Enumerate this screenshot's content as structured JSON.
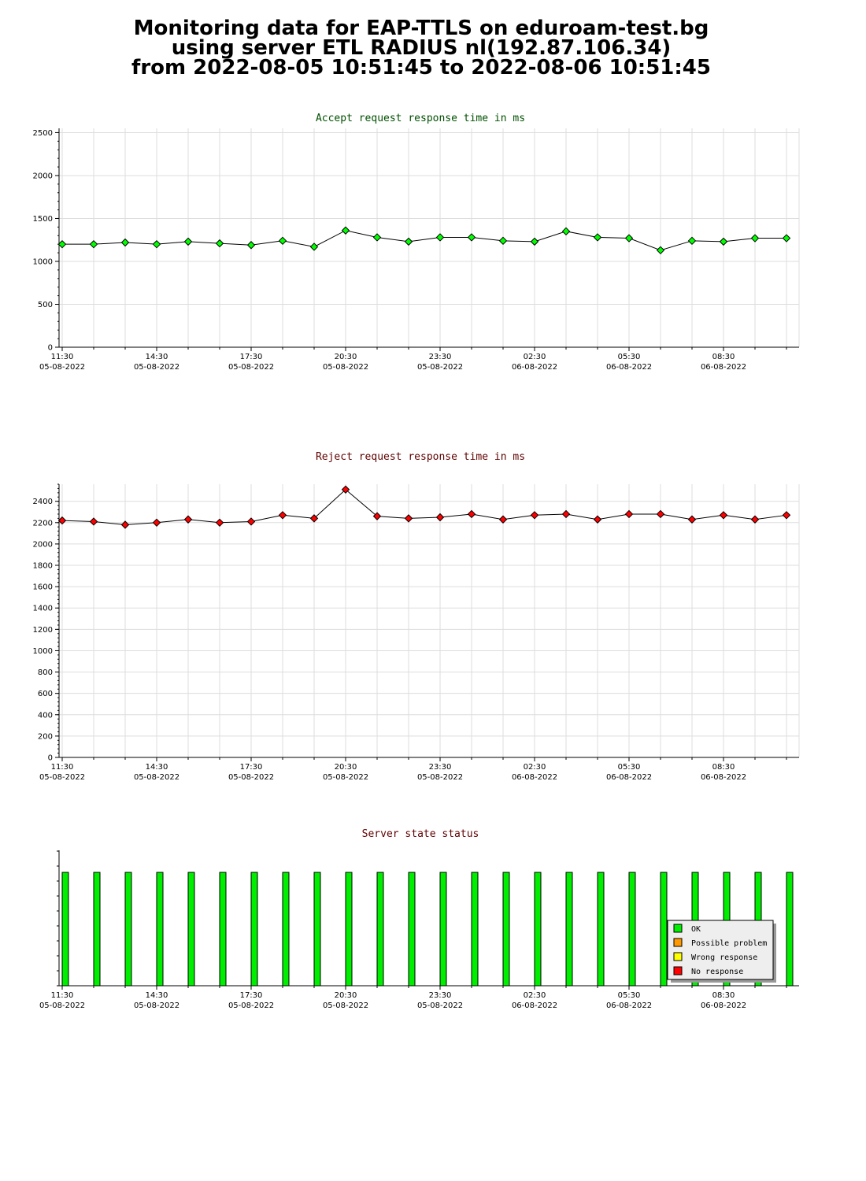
{
  "header": {
    "line1": "Monitoring data for EAP-TTLS on eduroam-test.bg",
    "line2": "using server ETL RADIUS nl(192.87.106.34)",
    "line3": "from 2022-08-05 10:51:45 to 2022-08-06 10:51:45"
  },
  "colors": {
    "accept_title": "#005000",
    "reject_title": "#600000",
    "status_title": "#600000",
    "accept_marker": "#00ff00",
    "reject_marker": "#ff0000",
    "ok_bar": "#00ee00",
    "possible_problem": "#ff9900",
    "wrong_response": "#ffff00",
    "no_response": "#ff0000",
    "grid": "#dddddd"
  },
  "x_tick_labels": [
    {
      "time": "11:30",
      "date": "05-08-2022"
    },
    {
      "time": "14:30",
      "date": "05-08-2022"
    },
    {
      "time": "17:30",
      "date": "05-08-2022"
    },
    {
      "time": "20:30",
      "date": "05-08-2022"
    },
    {
      "time": "23:30",
      "date": "05-08-2022"
    },
    {
      "time": "02:30",
      "date": "06-08-2022"
    },
    {
      "time": "05:30",
      "date": "06-08-2022"
    },
    {
      "time": "08:30",
      "date": "06-08-2022"
    }
  ],
  "chart_data": [
    {
      "type": "line",
      "title": "Accept request response time in ms",
      "xlabel": "",
      "ylabel": "",
      "x": [
        "2022-08-05 11:30",
        "2022-08-05 12:30",
        "2022-08-05 13:30",
        "2022-08-05 14:30",
        "2022-08-05 15:30",
        "2022-08-05 16:30",
        "2022-08-05 17:30",
        "2022-08-05 18:30",
        "2022-08-05 19:30",
        "2022-08-05 20:30",
        "2022-08-05 21:30",
        "2022-08-05 22:30",
        "2022-08-05 23:30",
        "2022-08-06 00:30",
        "2022-08-06 01:30",
        "2022-08-06 02:30",
        "2022-08-06 03:30",
        "2022-08-06 04:30",
        "2022-08-06 05:30",
        "2022-08-06 06:30",
        "2022-08-06 07:30",
        "2022-08-06 08:30",
        "2022-08-06 09:30",
        "2022-08-06 10:30"
      ],
      "values": [
        1200,
        1200,
        1220,
        1200,
        1230,
        1210,
        1190,
        1240,
        1170,
        1360,
        1280,
        1230,
        1280,
        1280,
        1240,
        1230,
        1350,
        1280,
        1270,
        1130,
        1240,
        1230,
        1270,
        1270
      ],
      "y_ticks": [
        "0",
        "500",
        "1000",
        "1500",
        "2000",
        "2500"
      ],
      "ylim": [
        0,
        2550
      ],
      "grid": true
    },
    {
      "type": "line",
      "title": "Reject request response time in ms",
      "xlabel": "",
      "ylabel": "",
      "x": [
        "2022-08-05 11:30",
        "2022-08-05 12:30",
        "2022-08-05 13:30",
        "2022-08-05 14:30",
        "2022-08-05 15:30",
        "2022-08-05 16:30",
        "2022-08-05 17:30",
        "2022-08-05 18:30",
        "2022-08-05 19:30",
        "2022-08-05 20:30",
        "2022-08-05 21:30",
        "2022-08-05 22:30",
        "2022-08-05 23:30",
        "2022-08-06 00:30",
        "2022-08-06 01:30",
        "2022-08-06 02:30",
        "2022-08-06 03:30",
        "2022-08-06 04:30",
        "2022-08-06 05:30",
        "2022-08-06 06:30",
        "2022-08-06 07:30",
        "2022-08-06 08:30",
        "2022-08-06 09:30",
        "2022-08-06 10:30"
      ],
      "values": [
        2220,
        2210,
        2180,
        2200,
        2230,
        2200,
        2210,
        2270,
        2240,
        2510,
        2260,
        2240,
        2250,
        2280,
        2230,
        2270,
        2280,
        2230,
        2280,
        2280,
        2230,
        2270,
        2230,
        2270
      ],
      "y_ticks": [
        "0",
        "200",
        "400",
        "600",
        "800",
        "1000",
        "1200",
        "1400",
        "1600",
        "1800",
        "2000",
        "2200",
        "2400"
      ],
      "ylim": [
        0,
        2560
      ],
      "grid": true
    },
    {
      "type": "bar",
      "title": "Server state status",
      "xlabel": "",
      "ylabel": "",
      "x": [
        "2022-08-05 11:30",
        "2022-08-05 12:30",
        "2022-08-05 13:30",
        "2022-08-05 14:30",
        "2022-08-05 15:30",
        "2022-08-05 16:30",
        "2022-08-05 17:30",
        "2022-08-05 18:30",
        "2022-08-05 19:30",
        "2022-08-05 20:30",
        "2022-08-05 21:30",
        "2022-08-05 22:30",
        "2022-08-05 23:30",
        "2022-08-06 00:30",
        "2022-08-06 01:30",
        "2022-08-06 02:30",
        "2022-08-06 03:30",
        "2022-08-06 04:30",
        "2022-08-06 05:30",
        "2022-08-06 06:30",
        "2022-08-06 07:30",
        "2022-08-06 08:30",
        "2022-08-06 09:30",
        "2022-08-06 10:30"
      ],
      "values": [
        "OK",
        "OK",
        "OK",
        "OK",
        "OK",
        "OK",
        "OK",
        "OK",
        "OK",
        "OK",
        "OK",
        "OK",
        "OK",
        "OK",
        "OK",
        "OK",
        "OK",
        "OK",
        "OK",
        "OK",
        "OK",
        "OK",
        "OK",
        "OK"
      ],
      "legend": [
        "OK",
        "Possible problem",
        "Wrong response",
        "No response"
      ],
      "legend_position": "bottom-right",
      "grid": false
    }
  ]
}
